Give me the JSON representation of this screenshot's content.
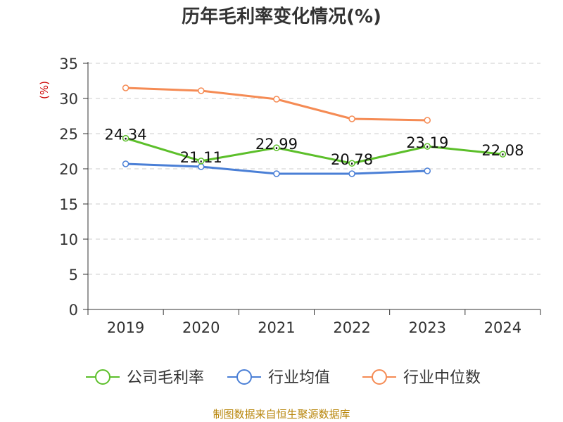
{
  "chart_data": {
    "type": "line",
    "title": "历年毛利率变化情况(%)",
    "ylabel": "(%)",
    "categories": [
      "2019",
      "2020",
      "2021",
      "2022",
      "2023",
      "2024"
    ],
    "ylim": [
      0,
      35
    ],
    "yticks": [
      0,
      5,
      10,
      15,
      20,
      25,
      30,
      35
    ],
    "grid": true,
    "legend_position": "bottom",
    "series": [
      {
        "name": "公司毛利率",
        "color": "#5cbf2a",
        "values": [
          24.34,
          21.11,
          22.99,
          20.78,
          23.19,
          22.08
        ],
        "labels": [
          "24.34",
          "21.11",
          "22.99",
          "20.78",
          "23.19",
          "22.08"
        ]
      },
      {
        "name": "行业均值",
        "color": "#4a7fd6",
        "values": [
          20.7,
          20.3,
          19.3,
          19.3,
          19.7,
          null
        ]
      },
      {
        "name": "行业中位数",
        "color": "#f58b54",
        "values": [
          31.5,
          31.1,
          29.9,
          27.1,
          26.9,
          null
        ]
      }
    ]
  },
  "source": "制图数据来自恒生聚源数据库"
}
